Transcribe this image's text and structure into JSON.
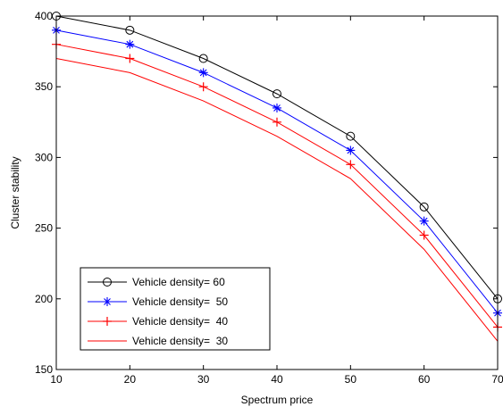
{
  "chart_data": {
    "type": "line",
    "title": "",
    "xlabel": "Spectrum price",
    "ylabel": "Cluster stability",
    "xlim": [
      10,
      70
    ],
    "ylim": [
      150,
      400
    ],
    "xticks": [
      10,
      20,
      30,
      40,
      50,
      60,
      70
    ],
    "yticks": [
      150,
      200,
      250,
      300,
      350,
      400
    ],
    "xtick_labels": [
      "10",
      "20",
      "30",
      "40",
      "50",
      "60",
      "70"
    ],
    "ytick_labels": [
      "150",
      "200",
      "250",
      "300",
      "350",
      "400"
    ],
    "grid": false,
    "legend_position": "bottom-left",
    "x": [
      10,
      20,
      30,
      40,
      50,
      60,
      70
    ],
    "series": [
      {
        "name": "Vehicle density= 60",
        "color": "#000000",
        "marker": "circle",
        "values": [
          400,
          390,
          370,
          345,
          315,
          265,
          200
        ]
      },
      {
        "name": "Vehicle density=  50",
        "color": "#0000ff",
        "marker": "star",
        "values": [
          390,
          380,
          360,
          335,
          305,
          255,
          190
        ]
      },
      {
        "name": "Vehicle density=  40",
        "color": "#ff0000",
        "marker": "plus",
        "values": [
          380,
          370,
          350,
          325,
          295,
          245,
          180
        ]
      },
      {
        "name": "Vehicle density=  30",
        "color": "#ff0000",
        "marker": "none",
        "values": [
          370,
          360,
          340,
          315,
          285,
          235,
          170
        ]
      }
    ]
  }
}
